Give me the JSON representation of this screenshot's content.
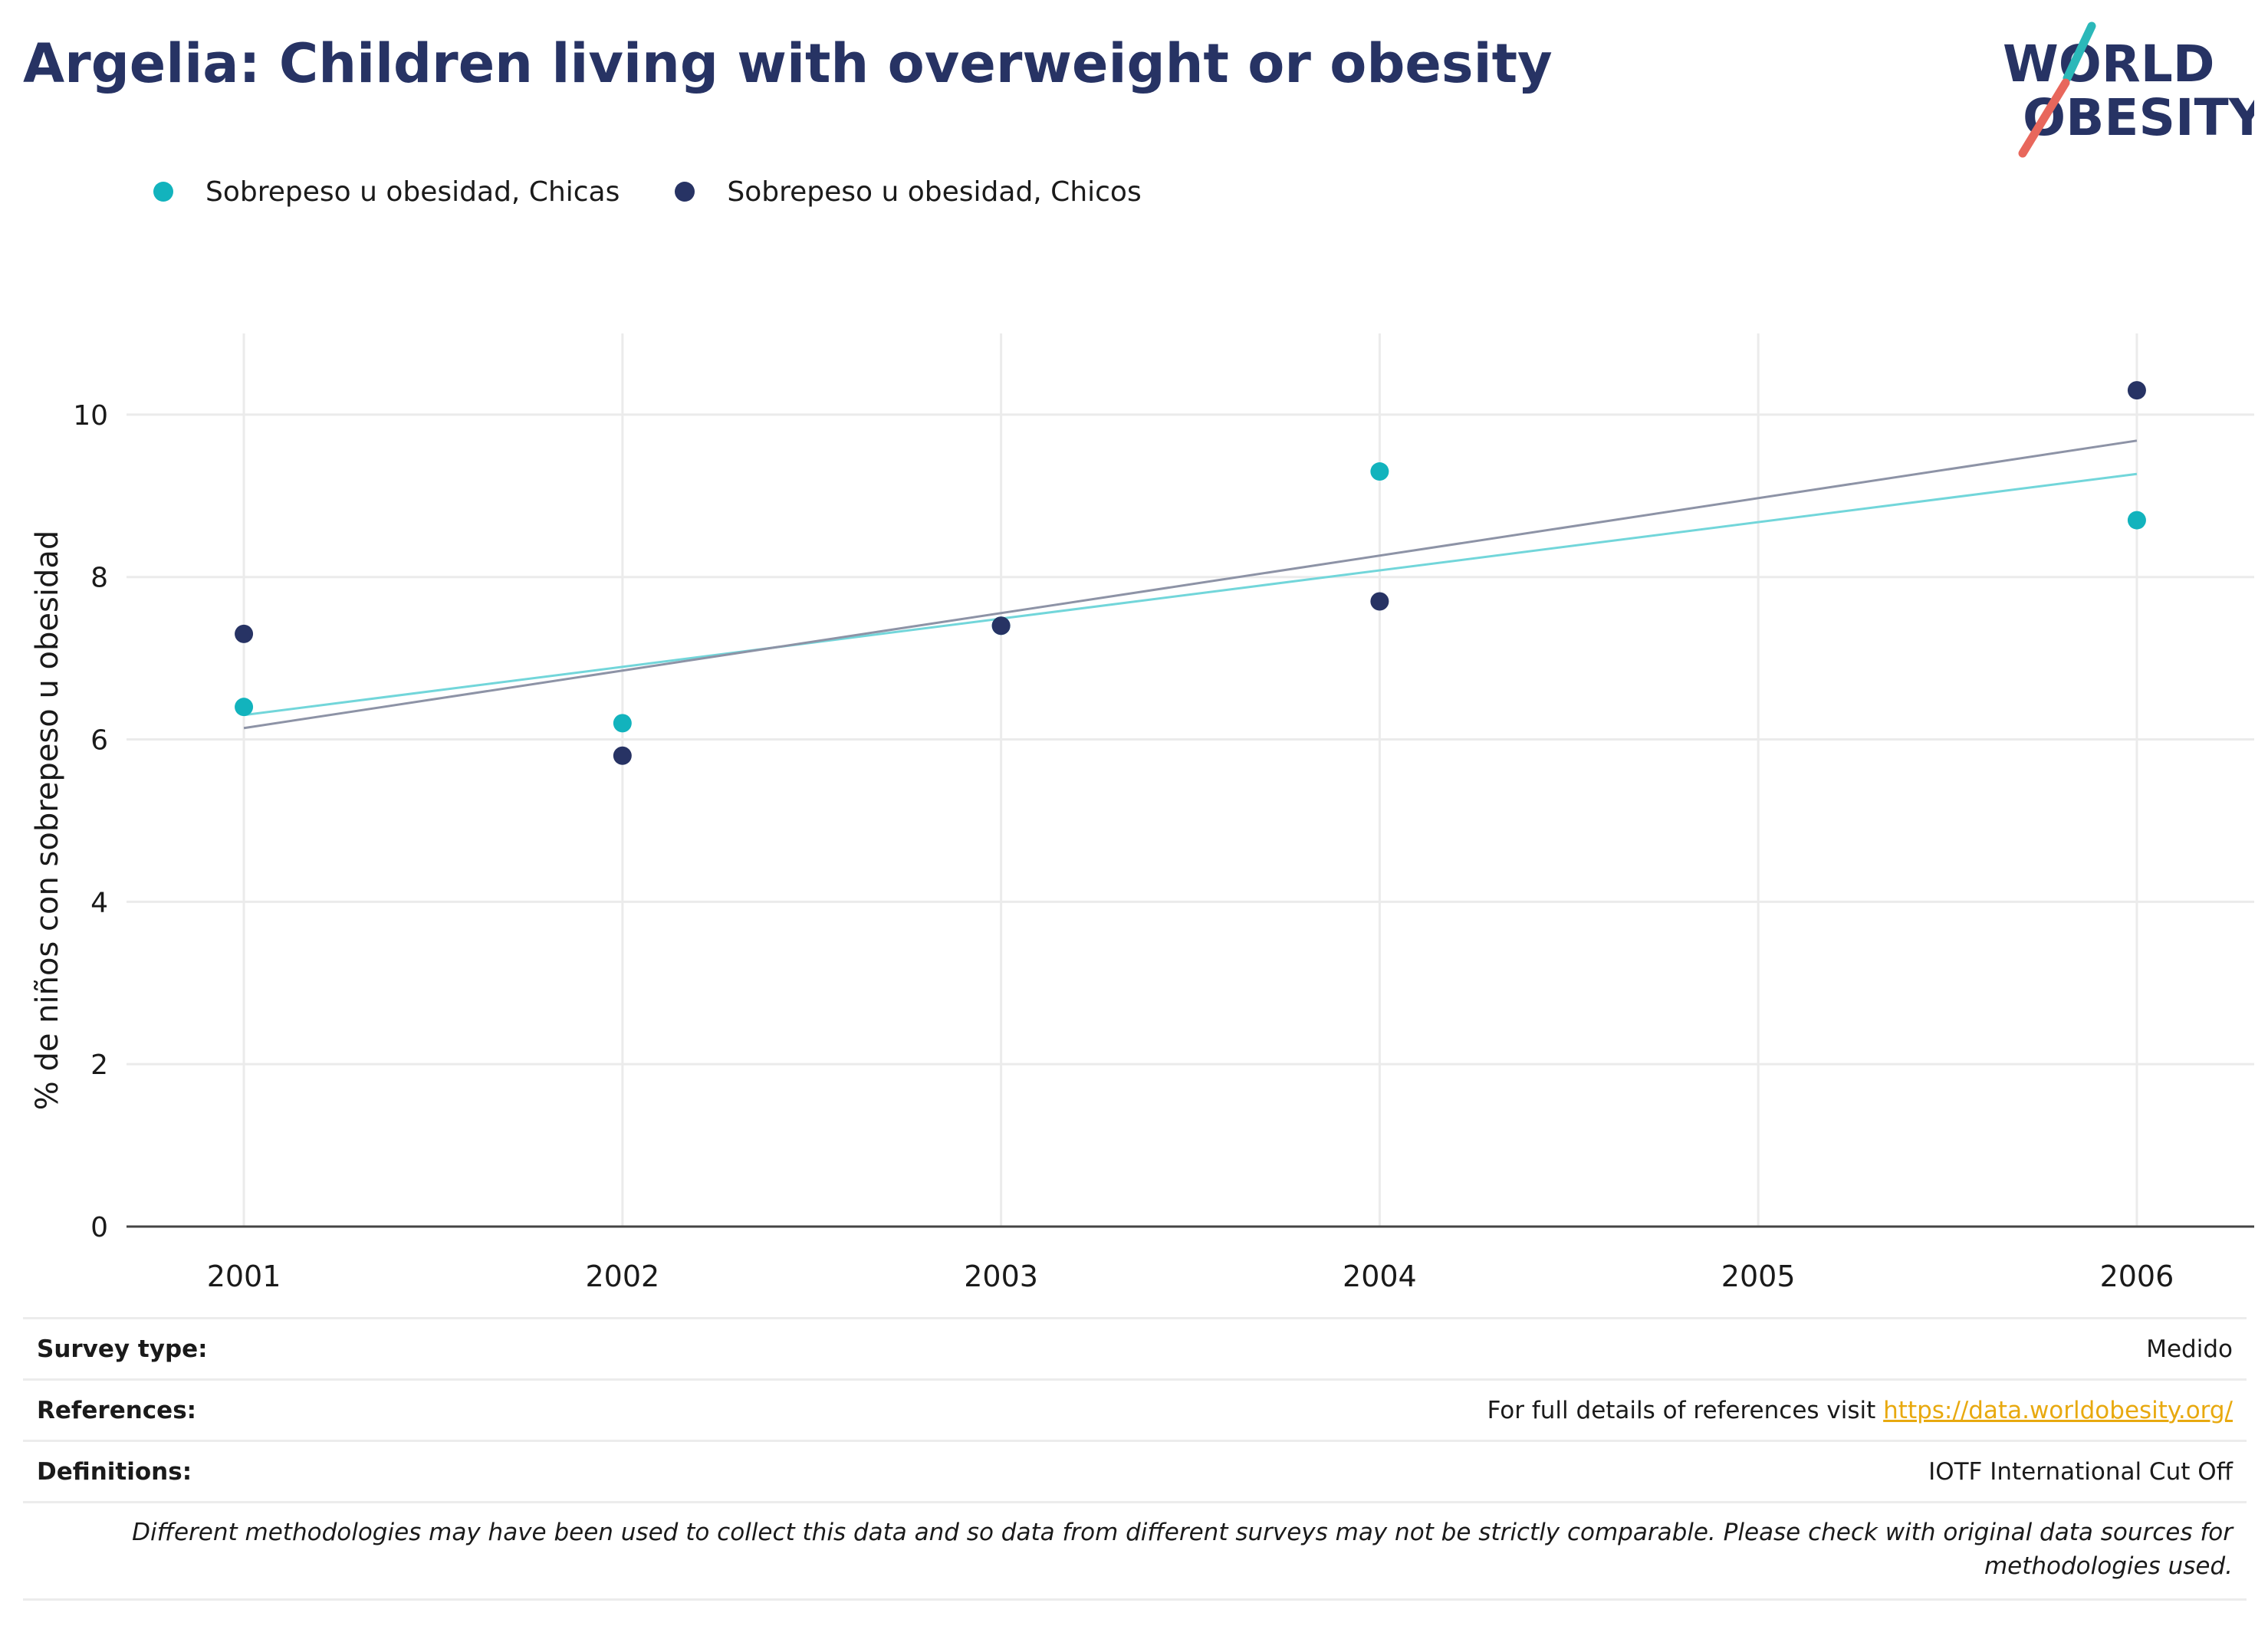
{
  "header": {
    "title": "Argelia: Children living with overweight or obesity",
    "logo_line1": "WORLD",
    "logo_line2": "OBESITY"
  },
  "colors": {
    "girls": "#12b3bd",
    "boys": "#273364",
    "girls_trend": "#72d6da",
    "boys_trend": "#8d93a6",
    "grid": "#ebebeb",
    "axis": "#444444",
    "logo_teal": "#2bb8b9",
    "logo_red": "#e8675c"
  },
  "chart_data": {
    "type": "scatter",
    "title": "Argelia: Children living with overweight or obesity",
    "xlabel": "",
    "ylabel": "% de niños con sobrepeso u obesidad",
    "x": [
      2001,
      2002,
      2003,
      2004,
      2005,
      2006
    ],
    "xlim": [
      2000.69,
      2006.31
    ],
    "ylim": [
      0,
      11
    ],
    "yticks": [
      0,
      2,
      4,
      6,
      8,
      10
    ],
    "grid": true,
    "legend_position": "top-left",
    "series": [
      {
        "name": "Sobrepeso u obesidad, Chicas",
        "color_key": "girls",
        "points": [
          {
            "x": 2001,
            "y": 6.4
          },
          {
            "x": 2002,
            "y": 6.2
          },
          {
            "x": 2003,
            "y": 7.4
          },
          {
            "x": 2004,
            "y": 9.3
          },
          {
            "x": 2006,
            "y": 8.7
          }
        ],
        "trend": {
          "start": {
            "x": 2001,
            "y": 6.3
          },
          "end": {
            "x": 2006,
            "y": 9.27
          }
        }
      },
      {
        "name": "Sobrepeso u obesidad, Chicos",
        "color_key": "boys",
        "points": [
          {
            "x": 2001,
            "y": 7.3
          },
          {
            "x": 2002,
            "y": 5.8
          },
          {
            "x": 2003,
            "y": 7.4
          },
          {
            "x": 2004,
            "y": 7.7
          },
          {
            "x": 2006,
            "y": 10.3
          }
        ],
        "trend": {
          "start": {
            "x": 2001,
            "y": 6.14
          },
          "end": {
            "x": 2006,
            "y": 9.68
          }
        }
      }
    ]
  },
  "footer": {
    "survey_label": "Survey type:",
    "survey_value": "Medido",
    "references_label": "References:",
    "references_prefix": "For full details of references visit ",
    "references_link": "https://data.worldobesity.org/",
    "definitions_label": "Definitions:",
    "definitions_value": "IOTF International Cut Off",
    "note": "Different methodologies may have been used to collect this data and so data from different surveys may not be strictly comparable. Please check with original data sources for methodologies used."
  }
}
